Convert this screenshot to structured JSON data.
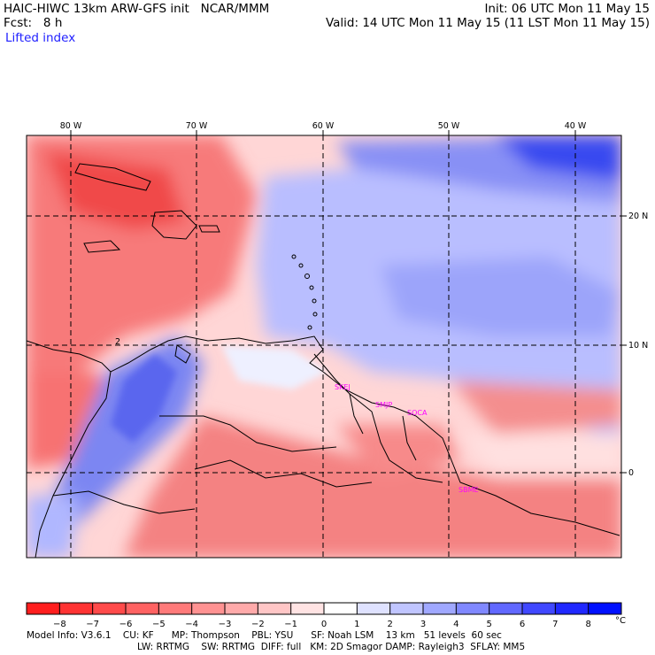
{
  "header": {
    "model_line": "HAIC-HIWC 13km ARW-GFS init   NCAR/MMM",
    "init_line": "Init: 06 UTC Mon 11 May 15",
    "fcst_line": "Fcst:   8 h",
    "valid_line": "Valid: 14 UTC Mon 11 May 15 (11 LST Mon 11 May 15)",
    "field_name": "Lifted index"
  },
  "map": {
    "lon_labels": [
      "80 W",
      "70 W",
      "60 W",
      "50 W",
      "40 W"
    ],
    "lat_labels": [
      "20 N",
      "10 N",
      "0"
    ],
    "cities": [
      "SKEJ",
      "SMJP",
      "SOCA",
      "SBME"
    ],
    "contour_label": "2",
    "colors": {
      "warm": "#f46a6a",
      "neutral": "#ffffff",
      "cool": "#8f9af2",
      "deep_cool": "#2a36f0"
    }
  },
  "colorbar": {
    "labels": [
      "−8",
      "−7",
      "−6",
      "−5",
      "−4",
      "−3",
      "−2",
      "−1",
      "0",
      "1",
      "2",
      "3",
      "4",
      "5",
      "6",
      "7",
      "8"
    ],
    "unit": "°C",
    "colors": [
      "#ff1e1e",
      "#ff3333",
      "#ff4a4a",
      "#ff6262",
      "#ff7a7a",
      "#ff9292",
      "#ffaaaa",
      "#ffc6c6",
      "#ffe3e3",
      "#ffffff",
      "#dfe2ff",
      "#c0c5ff",
      "#a0a8ff",
      "#8088ff",
      "#6168ff",
      "#4048ff",
      "#2028ff",
      "#0010ff"
    ]
  },
  "footer": {
    "line1": "Model Info: V3.6.1    CU: KF      MP: Thompson    PBL: YSU      SF: Noah LSM    13 km   51 levels  60 sec",
    "line2": "LW: RRTMG    SW: RRTMG  DIFF: full   KM: 2D Smagor DAMP: Rayleigh3  SFLAY: MM5"
  }
}
